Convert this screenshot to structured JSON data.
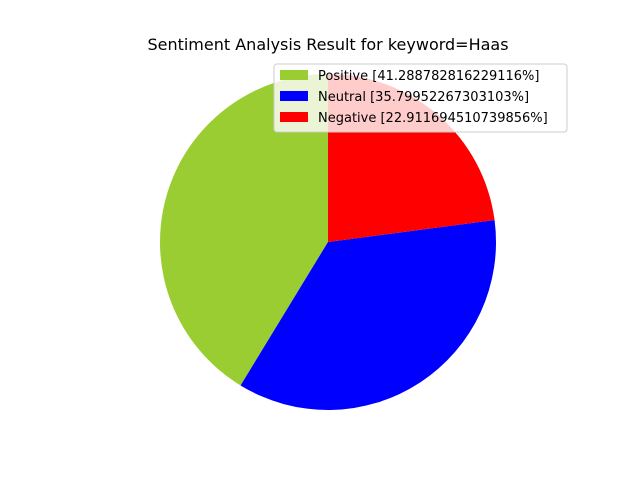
{
  "chart_data": {
    "type": "pie",
    "title": "Sentiment Analysis Result for keyword=Haas",
    "start_angle_deg": 90,
    "direction": "counterclockwise",
    "legend_position": "top-right",
    "slices": [
      {
        "label": "Positive [41.288782816229116%]",
        "value": 41.288782816229116,
        "color": "#9acd32"
      },
      {
        "label": "Neutral [35.79952267303103%]",
        "value": 35.79952267303103,
        "color": "#0000ff"
      },
      {
        "label": "Negative [22.911694510739856%]",
        "value": 22.911694510739856,
        "color": "#ff0000"
      }
    ]
  }
}
